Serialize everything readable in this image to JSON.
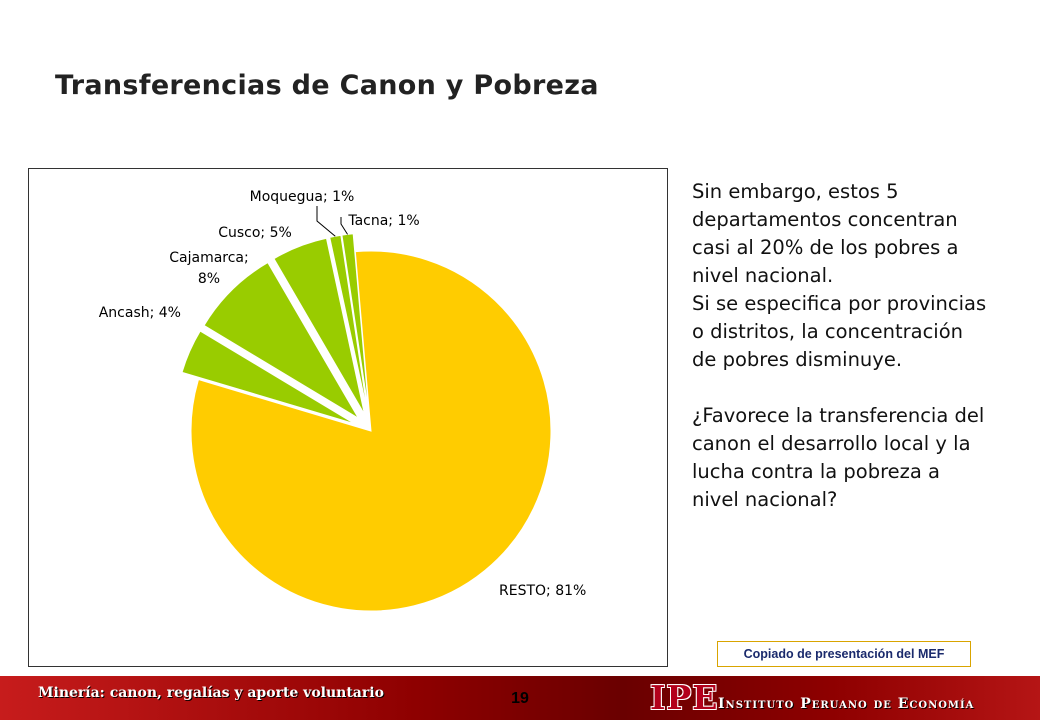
{
  "slide": {
    "title": "Transferencias de Canon y Pobreza"
  },
  "chart_data": {
    "type": "pie",
    "title": "",
    "slices": [
      {
        "label": "RESTO; 81%",
        "name": "RESTO",
        "value": 81,
        "color": "#FFCC00",
        "exploded": false
      },
      {
        "label": "Ancash; 4%",
        "name": "Ancash",
        "value": 4,
        "color": "#99CC00",
        "exploded": true
      },
      {
        "label": "Cajamarca; 8%",
        "name": "Cajamarca",
        "value": 8,
        "color": "#99CC00",
        "exploded": true
      },
      {
        "label": "Cusco; 5%",
        "name": "Cusco",
        "value": 5,
        "color": "#99CC00",
        "exploded": true
      },
      {
        "label": "Moquegua; 1%",
        "name": "Moquegua",
        "value": 1,
        "color": "#99CC00",
        "exploded": true
      },
      {
        "label": "Tacna; 1%",
        "name": "Tacna",
        "value": 1,
        "color": "#99CC00",
        "exploded": true
      }
    ],
    "legend": "none"
  },
  "side_text": {
    "paragraph1": "Sin embargo, estos 5 departamentos concentran casi al 20% de los pobres a nivel nacional.",
    "paragraph2": "Si se especifica por provincias o distritos, la concentración de pobres disminuye.",
    "paragraph3": "¿Favorece la transferencia del canon el desarrollo local y la lucha contra la pobreza a nivel nacional?"
  },
  "source_note": "Copiado de presentación del MEF",
  "footer": {
    "left_text": "Minería: canon, regalías y aporte voluntario",
    "page_number": "19",
    "logo_text": "IPE",
    "institute_name": "Instituto Peruano de Economía"
  },
  "colors": {
    "resto": "#FFCC00",
    "departamentos": "#99CC00",
    "footer_red": "#8E0000",
    "logo_red": "#B3001B"
  }
}
